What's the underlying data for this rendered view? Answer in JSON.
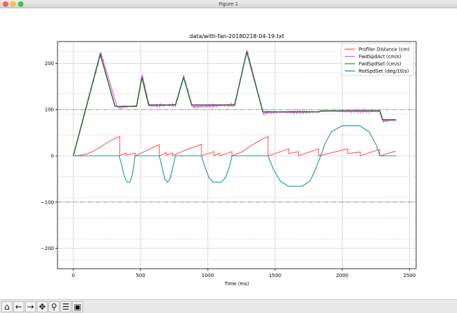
{
  "window": {
    "title": "Figure 1"
  },
  "toolbar": [
    {
      "name": "home-icon",
      "glyph": "⌂"
    },
    {
      "name": "back-arrow-icon",
      "glyph": "←"
    },
    {
      "name": "forward-arrow-icon",
      "glyph": "→"
    },
    {
      "name": "pan-icon",
      "glyph": "✥"
    },
    {
      "name": "zoom-icon",
      "glyph": "⚲"
    },
    {
      "name": "configure-subplots-icon",
      "glyph": "☰"
    },
    {
      "name": "save-icon",
      "glyph": "▣"
    }
  ],
  "chart_data": {
    "type": "line",
    "title": "data/with-fan-20180218-04-19.txt",
    "xlabel": "Time (ms)",
    "ylabel": "",
    "xlim": [
      -118,
      2550
    ],
    "ylim": [
      -244,
      247
    ],
    "xticks": [
      0,
      500,
      1000,
      1500,
      2000,
      2500
    ],
    "yticks": [
      -200,
      -100,
      0,
      100,
      200
    ],
    "grid": true,
    "dotted_hlines": [
      -225,
      -180,
      -135,
      -90,
      -45,
      45,
      90,
      135,
      180,
      225
    ],
    "dashed_hlines": [
      -100,
      100
    ],
    "legend_position": "top-right",
    "series": [
      {
        "name": "Profiler Distance (cm)",
        "color": "#ff5555",
        "points": [
          [
            0,
            0
          ],
          [
            50,
            1
          ],
          [
            100,
            4
          ],
          [
            150,
            10
          ],
          [
            200,
            19
          ],
          [
            250,
            28
          ],
          [
            300,
            36
          ],
          [
            345,
            42
          ],
          [
            345,
            0
          ],
          [
            392,
            6
          ],
          [
            392,
            1
          ],
          [
            459,
            6
          ],
          [
            459,
            0
          ],
          [
            500,
            5
          ],
          [
            550,
            12
          ],
          [
            600,
            19
          ],
          [
            640,
            24
          ],
          [
            640,
            0
          ],
          [
            690,
            7
          ],
          [
            690,
            1
          ],
          [
            740,
            6
          ],
          [
            740,
            0
          ],
          [
            800,
            8
          ],
          [
            850,
            14
          ],
          [
            900,
            19
          ],
          [
            953,
            25
          ],
          [
            953,
            0
          ],
          [
            1046,
            9
          ],
          [
            1046,
            0
          ],
          [
            1088,
            6
          ],
          [
            1088,
            0
          ],
          [
            1180,
            9
          ],
          [
            1180,
            0
          ],
          [
            1250,
            8
          ],
          [
            1300,
            17
          ],
          [
            1350,
            27
          ],
          [
            1400,
            35
          ],
          [
            1448,
            42
          ],
          [
            1448,
            0
          ],
          [
            1603,
            15
          ],
          [
            1603,
            5
          ],
          [
            1675,
            9
          ],
          [
            1675,
            0
          ],
          [
            1825,
            15
          ],
          [
            1825,
            0
          ],
          [
            2041,
            15
          ],
          [
            2041,
            5
          ],
          [
            2134,
            8
          ],
          [
            2134,
            0
          ],
          [
            2279,
            14
          ],
          [
            2279,
            0
          ],
          [
            2397,
            10
          ]
        ]
      },
      {
        "name": "FwdSpdAct (cm/s)",
        "color": "#ff44ff",
        "points": [
          [
            0,
            0
          ],
          [
            205,
            222
          ],
          [
            330,
            103
          ],
          [
            350,
            105
          ],
          [
            470,
            108
          ],
          [
            512,
            175
          ],
          [
            565,
            108
          ],
          [
            760,
            110
          ],
          [
            822,
            172
          ],
          [
            885,
            106
          ],
          [
            1200,
            110
          ],
          [
            1292,
            228
          ],
          [
            1415,
            90
          ],
          [
            1440,
            94
          ],
          [
            1830,
            95
          ],
          [
            1840,
            97
          ],
          [
            2280,
            97
          ],
          [
            2305,
            75
          ],
          [
            2400,
            78
          ]
        ]
      },
      {
        "name": "FwdSpdSet (cm/s)",
        "color": "#2ca02c",
        "points": [
          [
            0,
            0
          ],
          [
            200,
            220
          ],
          [
            310,
            107
          ],
          [
            470,
            107
          ],
          [
            510,
            170
          ],
          [
            560,
            110
          ],
          [
            760,
            110
          ],
          [
            820,
            170
          ],
          [
            880,
            110
          ],
          [
            1200,
            110
          ],
          [
            1290,
            225
          ],
          [
            1410,
            95
          ],
          [
            1830,
            95
          ],
          [
            1840,
            97
          ],
          [
            2280,
            97
          ],
          [
            2300,
            78
          ],
          [
            2400,
            78
          ]
        ]
      },
      {
        "name": "RotSpdSet (deg/10/s)",
        "color": "#17959a",
        "points": [
          [
            0,
            0
          ],
          [
            340,
            0
          ],
          [
            360,
            -20
          ],
          [
            380,
            -45
          ],
          [
            400,
            -57
          ],
          [
            420,
            -57
          ],
          [
            440,
            -40
          ],
          [
            460,
            0
          ],
          [
            640,
            0
          ],
          [
            660,
            -25
          ],
          [
            680,
            -50
          ],
          [
            700,
            -57
          ],
          [
            720,
            -50
          ],
          [
            740,
            -25
          ],
          [
            760,
            0
          ],
          [
            953,
            0
          ],
          [
            980,
            -25
          ],
          [
            1010,
            -48
          ],
          [
            1040,
            -57
          ],
          [
            1100,
            -57
          ],
          [
            1130,
            -48
          ],
          [
            1160,
            -25
          ],
          [
            1180,
            0
          ],
          [
            1448,
            0
          ],
          [
            1490,
            -30
          ],
          [
            1540,
            -55
          ],
          [
            1600,
            -66
          ],
          [
            1700,
            -66
          ],
          [
            1760,
            -55
          ],
          [
            1800,
            -30
          ],
          [
            1840,
            0
          ],
          [
            1870,
            25
          ],
          [
            1920,
            52
          ],
          [
            2000,
            65
          ],
          [
            2130,
            65
          ],
          [
            2200,
            52
          ],
          [
            2250,
            25
          ],
          [
            2280,
            0
          ],
          [
            2400,
            0
          ]
        ]
      }
    ]
  }
}
